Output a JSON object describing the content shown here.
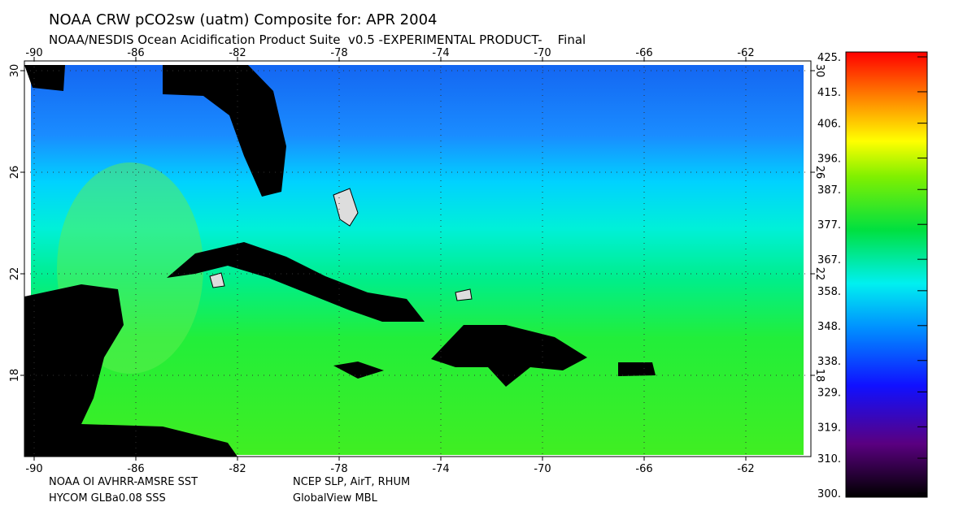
{
  "header": {
    "title": "NOAA CRW pCO2sw (uatm) Composite for: APR 2004",
    "subtitle": "NOAA/NESDIS Ocean Acidification Product Suite  v0.5 -EXPERIMENTAL PRODUCT-    Final"
  },
  "map": {
    "lon_ticks": [
      -90,
      -86,
      -82,
      -78,
      -74,
      -70,
      -66,
      -62
    ],
    "lat_ticks": [
      30,
      26,
      22,
      18
    ]
  },
  "colorbar": {
    "lim": [
      300,
      425
    ],
    "ticks": [
      {
        "value": 425,
        "label": "425."
      },
      {
        "value": 415,
        "label": "415."
      },
      {
        "value": 406,
        "label": "406."
      },
      {
        "value": 396,
        "label": "396."
      },
      {
        "value": 387,
        "label": "387."
      },
      {
        "value": 377,
        "label": "377."
      },
      {
        "value": 367,
        "label": "367."
      },
      {
        "value": 358,
        "label": "358."
      },
      {
        "value": 348,
        "label": "348."
      },
      {
        "value": 338,
        "label": "338."
      },
      {
        "value": 329,
        "label": "329."
      },
      {
        "value": 319,
        "label": "319."
      },
      {
        "value": 310,
        "label": "310."
      },
      {
        "value": 300,
        "label": "300."
      }
    ]
  },
  "footer": {
    "left": [
      "NOAA OI AVHRR-AMSRE SST",
      "HYCOM GLBa0.08 SSS"
    ],
    "right": [
      "NCEP SLP, AirT, RHUM",
      "GlobalView MBL"
    ]
  }
}
